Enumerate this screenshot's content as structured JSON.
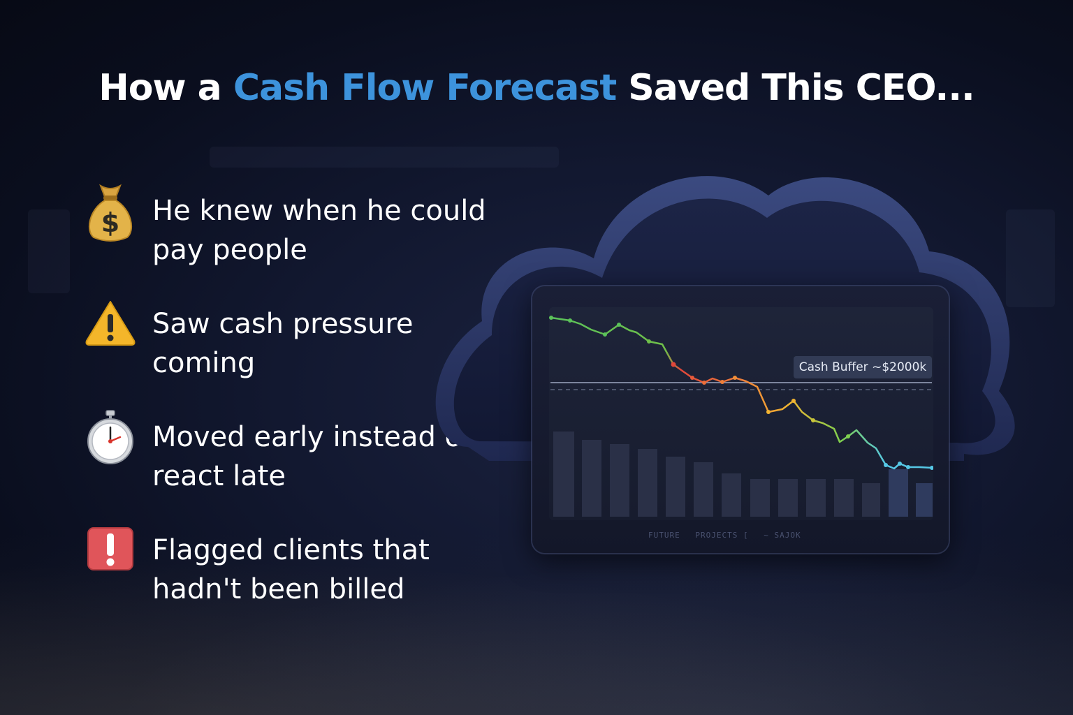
{
  "headline": {
    "part1": "How a ",
    "accent": "Cash Flow Forecast",
    "part2": " Saved This CEO..."
  },
  "features": [
    {
      "icon": "money-bag-icon",
      "text": "He knew when he could pay people"
    },
    {
      "icon": "warning-icon",
      "text": "Saw cash pressure coming"
    },
    {
      "icon": "stopwatch-icon",
      "text": "Moved early instead of react late"
    },
    {
      "icon": "exclamation-icon",
      "text": "Flagged clients that hadn't been billed"
    }
  ],
  "chart": {
    "buffer_label": "Cash Buffer ~$2000k",
    "footer": [
      "FUTURE",
      "PROJECTS [",
      "~ SAJOK"
    ]
  },
  "colors": {
    "accent": "#3d93dc",
    "line_start": "#5bc25a",
    "line_alert": "#e0473a",
    "line_mid": "#f0a531",
    "line_end": "#56c8e6"
  }
}
